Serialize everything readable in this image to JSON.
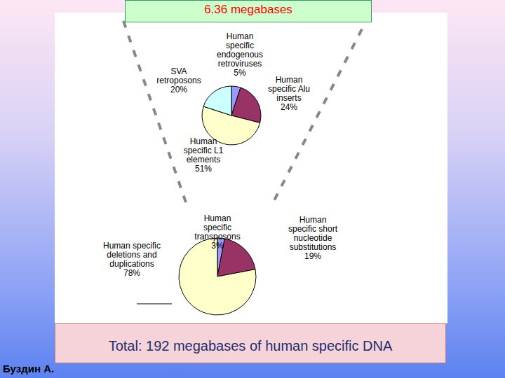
{
  "chart_data": [
    {
      "type": "pie",
      "title": "6.36 megabases",
      "categories": [
        "Human specific endogenous retroviruses",
        "Human specific Alu inserts",
        "Human specific L1 elements",
        "SVA retroposons"
      ],
      "values": [
        5,
        24,
        51,
        20
      ],
      "value_labels": [
        "5%",
        "24%",
        "51%",
        "20%"
      ],
      "colors": [
        "#9999ff",
        "#993366",
        "#ffffcc",
        "#ccffff"
      ],
      "data_labels": true
    },
    {
      "type": "pie",
      "title": "Total: 192 megabases of human specific DNA",
      "categories": [
        "Human specific transposons",
        "Human specific short nucleotide substitutions",
        "Human specific deletions and duplications"
      ],
      "values": [
        3,
        19,
        78
      ],
      "value_labels": [
        "3%",
        "19%",
        "78%"
      ],
      "colors": [
        "#9999ff",
        "#993366",
        "#ffffcc"
      ],
      "data_labels": true
    }
  ],
  "author": "Буздин А."
}
